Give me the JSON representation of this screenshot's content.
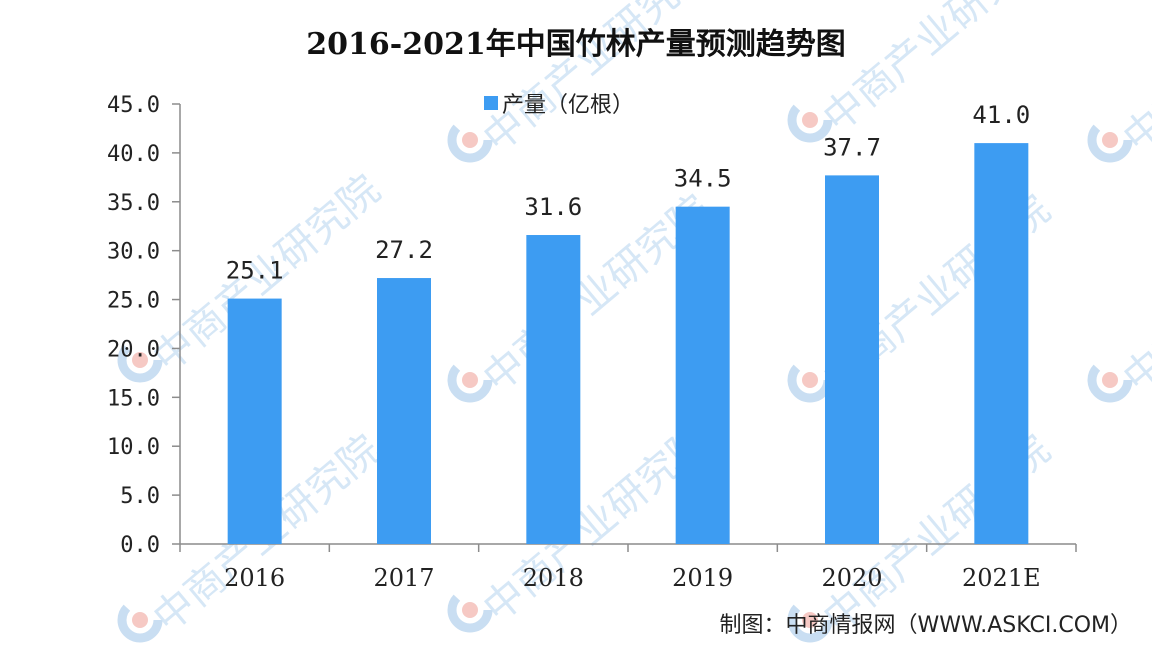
{
  "source_text": "制图：中商情报网（WWW.ASKCI.COM）",
  "watermark_text": "中商产业研究院",
  "colors": {
    "bar": "#3d9cf2",
    "axis": "#8c8c8c",
    "watermark": "#cfe3f5",
    "logo_blue": "#c9def2",
    "logo_red": "#f6c9c4"
  },
  "chart_data": {
    "type": "bar",
    "title": "2016-2021年中国竹林产量预测趋势图",
    "series": [
      {
        "name": "产量（亿根）",
        "values": [
          25.1,
          27.2,
          31.6,
          34.5,
          37.7,
          41.0
        ]
      }
    ],
    "categories": [
      "2016",
      "2017",
      "2018",
      "2019",
      "2020",
      "2021E"
    ],
    "value_labels": [
      "25.1",
      "27.2",
      "31.6",
      "34.5",
      "37.7",
      "41.0"
    ],
    "y_ticks": [
      "0.0",
      "5.0",
      "10.0",
      "15.0",
      "20.0",
      "25.0",
      "30.0",
      "35.0",
      "40.0",
      "45.0"
    ],
    "ylim": [
      0,
      45
    ],
    "xlabel": "",
    "ylabel": "",
    "grid": false,
    "legend_position": "top-center"
  }
}
